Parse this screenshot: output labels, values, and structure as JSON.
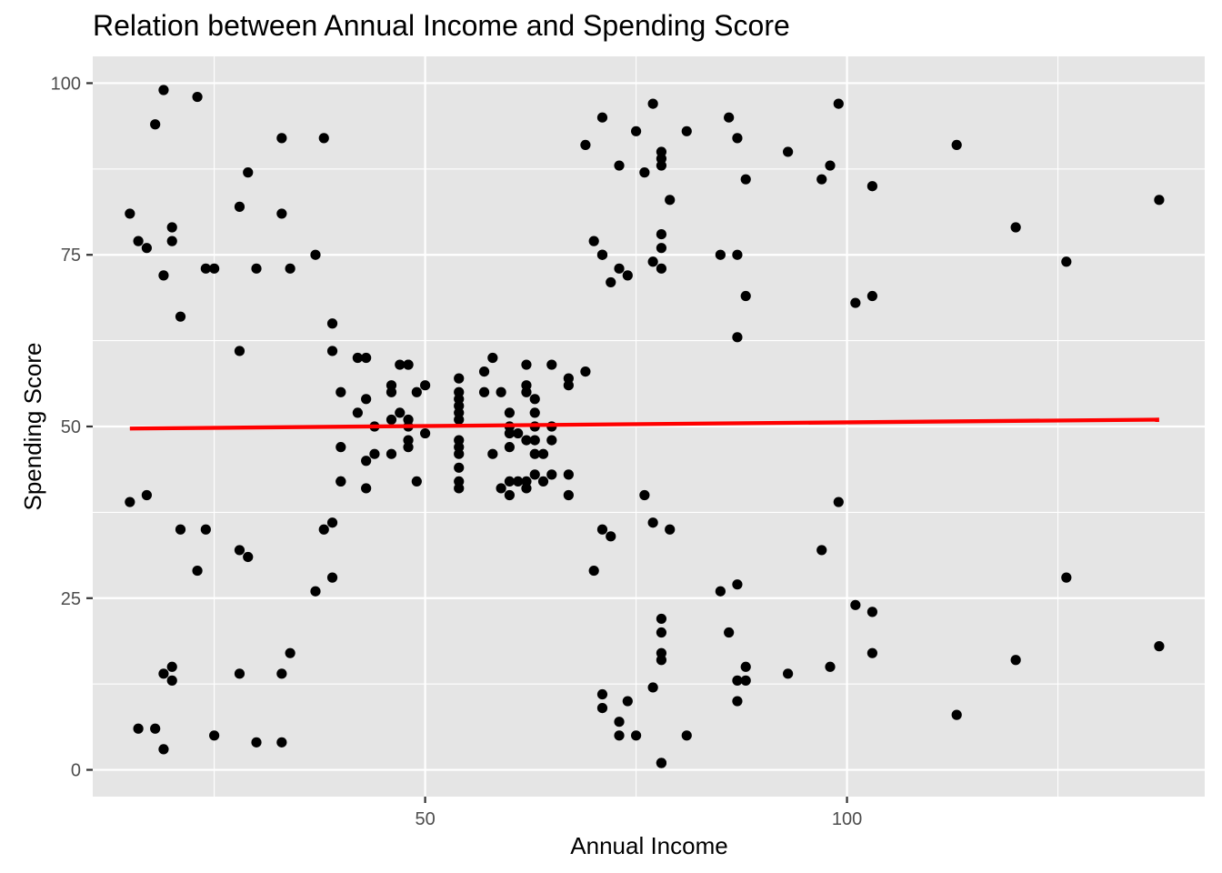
{
  "chart_data": {
    "type": "scatter",
    "title": "Relation between Annual Income and Spending Score",
    "xlabel": "Annual Income",
    "ylabel": "Spending Score",
    "xlim": [
      10.6,
      142.4
    ],
    "ylim": [
      -3.9,
      103.9
    ],
    "x_ticks": [
      50,
      100
    ],
    "y_ticks": [
      0,
      25,
      50,
      75,
      100
    ],
    "grid": true,
    "colors": {
      "panel_background": "#e5e5e5",
      "grid": "#ffffff",
      "points": "#000000",
      "trend_line": "#ff0000"
    },
    "trend_line": {
      "x": [
        15,
        137
      ],
      "y": [
        49.7,
        51.0
      ]
    },
    "points": [
      [
        15,
        39
      ],
      [
        15,
        81
      ],
      [
        16,
        6
      ],
      [
        16,
        77
      ],
      [
        17,
        40
      ],
      [
        17,
        76
      ],
      [
        18,
        6
      ],
      [
        18,
        94
      ],
      [
        19,
        3
      ],
      [
        19,
        72
      ],
      [
        19,
        14
      ],
      [
        19,
        99
      ],
      [
        20,
        15
      ],
      [
        20,
        77
      ],
      [
        20,
        13
      ],
      [
        20,
        79
      ],
      [
        21,
        35
      ],
      [
        21,
        66
      ],
      [
        23,
        29
      ],
      [
        23,
        98
      ],
      [
        24,
        35
      ],
      [
        24,
        73
      ],
      [
        25,
        5
      ],
      [
        25,
        73
      ],
      [
        28,
        14
      ],
      [
        28,
        82
      ],
      [
        28,
        32
      ],
      [
        28,
        61
      ],
      [
        29,
        31
      ],
      [
        29,
        87
      ],
      [
        30,
        4
      ],
      [
        30,
        73
      ],
      [
        33,
        4
      ],
      [
        33,
        92
      ],
      [
        33,
        14
      ],
      [
        33,
        81
      ],
      [
        34,
        17
      ],
      [
        34,
        73
      ],
      [
        37,
        26
      ],
      [
        37,
        75
      ],
      [
        38,
        35
      ],
      [
        38,
        92
      ],
      [
        39,
        36
      ],
      [
        39,
        61
      ],
      [
        39,
        28
      ],
      [
        39,
        65
      ],
      [
        40,
        55
      ],
      [
        40,
        47
      ],
      [
        40,
        42
      ],
      [
        40,
        42
      ],
      [
        42,
        52
      ],
      [
        42,
        60
      ],
      [
        43,
        54
      ],
      [
        43,
        60
      ],
      [
        43,
        45
      ],
      [
        43,
        41
      ],
      [
        44,
        50
      ],
      [
        44,
        46
      ],
      [
        46,
        51
      ],
      [
        46,
        46
      ],
      [
        46,
        56
      ],
      [
        46,
        55
      ],
      [
        47,
        52
      ],
      [
        47,
        59
      ],
      [
        48,
        51
      ],
      [
        48,
        59
      ],
      [
        48,
        50
      ],
      [
        48,
        48
      ],
      [
        48,
        59
      ],
      [
        48,
        47
      ],
      [
        49,
        55
      ],
      [
        49,
        42
      ],
      [
        50,
        49
      ],
      [
        50,
        56
      ],
      [
        54,
        47
      ],
      [
        54,
        54
      ],
      [
        54,
        53
      ],
      [
        54,
        48
      ],
      [
        54,
        52
      ],
      [
        54,
        42
      ],
      [
        54,
        51
      ],
      [
        54,
        55
      ],
      [
        54,
        41
      ],
      [
        54,
        44
      ],
      [
        54,
        57
      ],
      [
        54,
        46
      ],
      [
        57,
        58
      ],
      [
        57,
        55
      ],
      [
        58,
        60
      ],
      [
        58,
        46
      ],
      [
        59,
        55
      ],
      [
        59,
        41
      ],
      [
        60,
        49
      ],
      [
        60,
        40
      ],
      [
        60,
        42
      ],
      [
        60,
        52
      ],
      [
        60,
        47
      ],
      [
        60,
        50
      ],
      [
        61,
        42
      ],
      [
        61,
        49
      ],
      [
        62,
        41
      ],
      [
        62,
        48
      ],
      [
        62,
        59
      ],
      [
        62,
        55
      ],
      [
        62,
        56
      ],
      [
        62,
        42
      ],
      [
        63,
        50
      ],
      [
        63,
        46
      ],
      [
        63,
        43
      ],
      [
        63,
        48
      ],
      [
        63,
        52
      ],
      [
        63,
        54
      ],
      [
        64,
        42
      ],
      [
        64,
        46
      ],
      [
        65,
        48
      ],
      [
        65,
        50
      ],
      [
        65,
        43
      ],
      [
        65,
        59
      ],
      [
        67,
        43
      ],
      [
        67,
        57
      ],
      [
        67,
        56
      ],
      [
        67,
        40
      ],
      [
        69,
        58
      ],
      [
        69,
        91
      ],
      [
        70,
        29
      ],
      [
        70,
        77
      ],
      [
        71,
        35
      ],
      [
        71,
        95
      ],
      [
        71,
        11
      ],
      [
        71,
        75
      ],
      [
        71,
        9
      ],
      [
        71,
        75
      ],
      [
        72,
        34
      ],
      [
        72,
        71
      ],
      [
        73,
        5
      ],
      [
        73,
        88
      ],
      [
        73,
        7
      ],
      [
        73,
        73
      ],
      [
        74,
        10
      ],
      [
        74,
        72
      ],
      [
        75,
        5
      ],
      [
        75,
        93
      ],
      [
        76,
        40
      ],
      [
        76,
        87
      ],
      [
        77,
        12
      ],
      [
        77,
        97
      ],
      [
        77,
        36
      ],
      [
        77,
        74
      ],
      [
        78,
        22
      ],
      [
        78,
        90
      ],
      [
        78,
        17
      ],
      [
        78,
        88
      ],
      [
        78,
        20
      ],
      [
        78,
        76
      ],
      [
        78,
        16
      ],
      [
        78,
        89
      ],
      [
        78,
        1
      ],
      [
        78,
        78
      ],
      [
        78,
        1
      ],
      [
        78,
        73
      ],
      [
        79,
        35
      ],
      [
        79,
        83
      ],
      [
        81,
        5
      ],
      [
        81,
        93
      ],
      [
        85,
        26
      ],
      [
        85,
        75
      ],
      [
        86,
        20
      ],
      [
        86,
        95
      ],
      [
        87,
        27
      ],
      [
        87,
        63
      ],
      [
        87,
        13
      ],
      [
        87,
        75
      ],
      [
        87,
        10
      ],
      [
        87,
        92
      ],
      [
        88,
        13
      ],
      [
        88,
        86
      ],
      [
        88,
        15
      ],
      [
        88,
        69
      ],
      [
        93,
        14
      ],
      [
        93,
        90
      ],
      [
        97,
        32
      ],
      [
        97,
        86
      ],
      [
        98,
        15
      ],
      [
        98,
        88
      ],
      [
        99,
        39
      ],
      [
        99,
        97
      ],
      [
        101,
        24
      ],
      [
        101,
        68
      ],
      [
        103,
        17
      ],
      [
        103,
        85
      ],
      [
        103,
        23
      ],
      [
        103,
        69
      ],
      [
        113,
        8
      ],
      [
        113,
        91
      ],
      [
        120,
        16
      ],
      [
        120,
        79
      ],
      [
        126,
        28
      ],
      [
        126,
        74
      ],
      [
        137,
        18
      ],
      [
        137,
        83
      ]
    ]
  }
}
